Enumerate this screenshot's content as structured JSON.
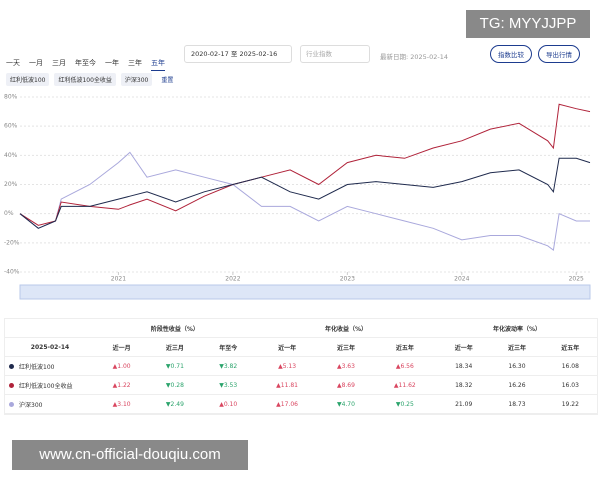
{
  "watermark_top": "TG: MYYJJPP",
  "watermark_bottom": "www.cn-official-douqiu.com",
  "toolbar": {
    "tabs": [
      "一天",
      "一月",
      "三月",
      "年至今",
      "一年",
      "三年",
      "五年"
    ],
    "date_start": "2020-02-17",
    "date_sep": "至",
    "date_end": "2025-02-16",
    "select_placeholder": "行业指数",
    "latest_date": "最新日期: 2025-02-14",
    "buttons": [
      "指数比较",
      "导出行情"
    ],
    "reset": "重置"
  },
  "chart_data": {
    "type": "line",
    "x": [
      2020.14,
      2020.3,
      2020.45,
      2020.5,
      2020.75,
      2021.0,
      2021.1,
      2021.25,
      2021.5,
      2021.75,
      2022.0,
      2022.25,
      2022.5,
      2022.75,
      2023.0,
      2023.25,
      2023.5,
      2023.75,
      2024.0,
      2024.25,
      2024.5,
      2024.75,
      2024.8,
      2024.85,
      2025.0,
      2025.12
    ],
    "series": [
      {
        "name": "红利低波100",
        "color": "#1f2a4d",
        "values": [
          0,
          -10,
          -5,
          5,
          5,
          10,
          12,
          15,
          8,
          15,
          20,
          25,
          15,
          10,
          20,
          22,
          20,
          18,
          22,
          28,
          30,
          20,
          15,
          38,
          38,
          35
        ]
      },
      {
        "name": "红利低波100全收益",
        "color": "#b0233a",
        "values": [
          0,
          -8,
          -5,
          8,
          5,
          3,
          6,
          10,
          2,
          12,
          20,
          25,
          30,
          20,
          35,
          40,
          38,
          45,
          50,
          58,
          62,
          50,
          45,
          75,
          72,
          70
        ]
      },
      {
        "name": "沪深300",
        "color": "#a9a8dc",
        "values": [
          0,
          -10,
          -5,
          10,
          20,
          35,
          42,
          25,
          30,
          25,
          20,
          5,
          5,
          -5,
          5,
          0,
          -5,
          -10,
          -18,
          -15,
          -15,
          -22,
          -25,
          0,
          -5,
          -5
        ]
      }
    ],
    "xlim": [
      2020.14,
      2025.12
    ],
    "xticks": [
      2021,
      2022,
      2023,
      2024,
      2025
    ],
    "ylim": [
      -40,
      80
    ],
    "yticks": [
      {
        "value": -40,
        "label": "-40%"
      },
      {
        "value": -20,
        "label": "-20%"
      },
      {
        "value": 0,
        "label": "0%"
      },
      {
        "value": 20,
        "label": "20%"
      },
      {
        "value": 40,
        "label": "40%"
      },
      {
        "value": 60,
        "label": "60%"
      },
      {
        "value": 80,
        "label": "80%"
      }
    ],
    "grid": true
  },
  "table": {
    "groups": [
      "阶段性收益（%）",
      "年化收益（%）",
      "年化波动率（%）"
    ],
    "columns": [
      "2025-02-14",
      "近一月",
      "近三月",
      "年至今",
      "近一年",
      "近三年",
      "近五年",
      "近一年",
      "近三年",
      "近五年"
    ],
    "rows": [
      [
        "红利低波100",
        "▲1.00",
        "▼0.71",
        "▼3.82",
        "▲5.13",
        "▲3.63",
        "▲6.56",
        "18.34",
        "16.30",
        "16.08"
      ],
      [
        "红利低波100全收益",
        "▲1.22",
        "▼0.28",
        "▼3.53",
        "▲11.81",
        "▲8.69",
        "▲11.62",
        "18.32",
        "16.26",
        "16.03"
      ],
      [
        "沪深300",
        "▲3.10",
        "▼2.49",
        "▲0.10",
        "▲17.06",
        "▼4.70",
        "▼0.25",
        "21.09",
        "18.73",
        "19.22"
      ]
    ]
  }
}
